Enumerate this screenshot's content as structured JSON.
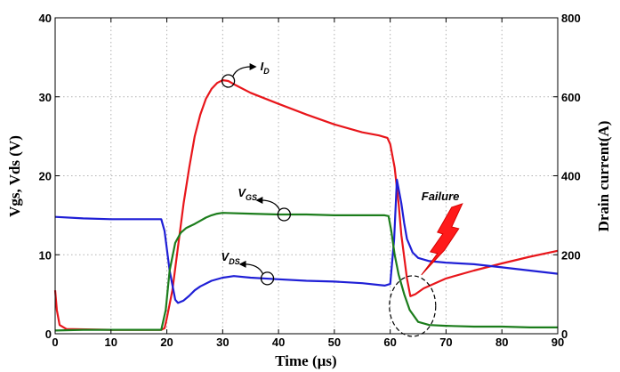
{
  "chart_data": {
    "type": "line",
    "title": "",
    "xlabel": "Time (µs)",
    "ylabel_left": "Vgs,  Vds (V)",
    "ylabel_right": "Drain current(A)",
    "xlim": [
      0,
      90
    ],
    "ylim_left": [
      0,
      40
    ],
    "ylim_right": [
      0,
      800
    ],
    "x_ticks": [
      0,
      10,
      20,
      30,
      40,
      50,
      60,
      70,
      80,
      90
    ],
    "y_left_ticks": [
      0,
      10,
      20,
      30,
      40
    ],
    "y_right_ticks": [
      0,
      200,
      400,
      600,
      800
    ],
    "grid": true,
    "series": [
      {
        "key": "id",
        "axis": "right",
        "color": "#e8161b",
        "x": [
          0,
          0.3,
          0.8,
          2,
          10,
          19,
          19.6,
          20,
          21,
          22,
          23,
          24,
          25,
          26,
          27,
          28,
          29,
          30,
          31,
          32,
          35,
          40,
          45,
          50,
          55,
          58,
          59.5,
          60,
          60.8,
          61.5,
          62,
          63,
          63.6,
          64.5,
          66,
          70,
          75,
          80,
          85,
          90
        ],
        "y": [
          110,
          60,
          22,
          12,
          10,
          10,
          14,
          40,
          110,
          220,
          330,
          420,
          500,
          555,
          595,
          620,
          635,
          642,
          640,
          632,
          610,
          582,
          555,
          530,
          510,
          502,
          496,
          480,
          420,
          330,
          250,
          140,
          95,
          100,
          115,
          140,
          160,
          178,
          195,
          210
        ]
      },
      {
        "key": "vds",
        "axis": "left",
        "color": "#1f1fd6",
        "x": [
          0,
          5,
          10,
          15,
          19,
          19.6,
          20.5,
          21.5,
          22,
          23,
          24,
          25,
          26,
          28,
          30,
          32,
          35,
          40,
          45,
          50,
          55,
          59,
          60,
          60.7,
          61.2,
          62,
          62.5,
          63,
          64,
          65,
          67,
          70,
          75,
          80,
          85,
          90
        ],
        "y": [
          14.8,
          14.6,
          14.5,
          14.5,
          14.5,
          13,
          8,
          4.3,
          3.9,
          4.2,
          4.8,
          5.5,
          6,
          6.7,
          7.1,
          7.3,
          7.1,
          6.9,
          6.7,
          6.6,
          6.4,
          6.1,
          6.3,
          12,
          19.5,
          16.5,
          14,
          12,
          10.3,
          9.6,
          9.2,
          9,
          8.8,
          8.4,
          8,
          7.6
        ]
      },
      {
        "key": "vgs",
        "axis": "left",
        "color": "#1c7d1c",
        "x": [
          0,
          5,
          10,
          15,
          19,
          19.8,
          20.5,
          21.5,
          22.5,
          23.5,
          25,
          26,
          27,
          28,
          29,
          30,
          35,
          40,
          45,
          50,
          55,
          59,
          59.7,
          60.2,
          60.8,
          61.5,
          62.5,
          63.5,
          65,
          67,
          70,
          75,
          80,
          85,
          90
        ],
        "y": [
          0.4,
          0.5,
          0.5,
          0.5,
          0.5,
          3,
          8,
          11.5,
          12.8,
          13.4,
          13.9,
          14.3,
          14.7,
          15,
          15.2,
          15.3,
          15.2,
          15.1,
          15.1,
          15,
          15,
          15,
          14.9,
          13,
          10,
          7.5,
          5,
          3,
          1.5,
          1.1,
          1,
          0.9,
          0.9,
          0.8,
          0.8
        ]
      }
    ],
    "annotations": [
      {
        "key": "id",
        "label": "I",
        "sub": "D",
        "x": 31,
        "axis": "right",
        "y": 640
      },
      {
        "key": "vgs",
        "label": "V",
        "sub": "GS",
        "x": 41,
        "axis": "left",
        "y": 15.1
      },
      {
        "key": "vds",
        "label": "V",
        "sub": "DS",
        "x": 38,
        "axis": "left",
        "y": 7.0
      },
      {
        "key": "failure",
        "label": "Failure",
        "x": 64,
        "axis": "left",
        "y": 3.5
      }
    ]
  }
}
